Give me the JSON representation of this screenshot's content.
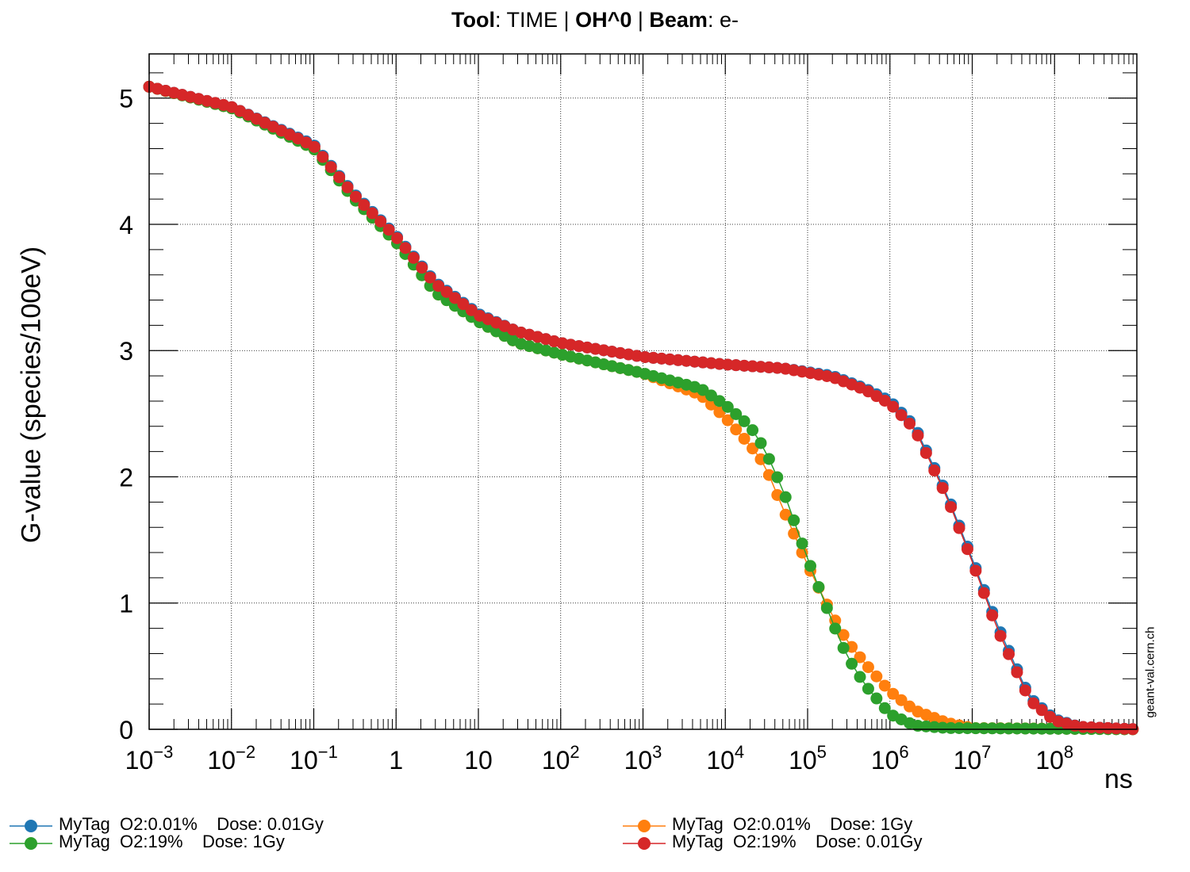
{
  "title": {
    "tool_key": "Tool",
    "tool_val": ": TIME | ",
    "species": "OH^0",
    "sep": " | ",
    "beam_key": "Beam",
    "beam_val": ": e-"
  },
  "watermark": "geant-val.cern.ch",
  "colors": {
    "blue": "#1f77b4",
    "orange": "#ff7f0e",
    "green": "#2ca02c",
    "red": "#d62728"
  },
  "chart_data": {
    "type": "line",
    "x_scale": "log",
    "xlabel": "ns",
    "ylabel": "G-value (species/100eV)",
    "xlim": [
      0.001,
      1000000000
    ],
    "ylim": [
      0,
      5.35
    ],
    "grid": true,
    "legend_position": "bottom",
    "x_ticks": [
      {
        "base": "10",
        "exp": "−3",
        "v": 0.001
      },
      {
        "base": "10",
        "exp": "−2",
        "v": 0.01
      },
      {
        "base": "10",
        "exp": "−1",
        "v": 0.1
      },
      {
        "base": "1",
        "exp": "",
        "v": 1
      },
      {
        "base": "10",
        "exp": "",
        "v": 10
      },
      {
        "base": "10",
        "exp": "2",
        "v": 100
      },
      {
        "base": "10",
        "exp": "3",
        "v": 1000
      },
      {
        "base": "10",
        "exp": "4",
        "v": 10000
      },
      {
        "base": "10",
        "exp": "5",
        "v": 100000
      },
      {
        "base": "10",
        "exp": "6",
        "v": 1000000
      },
      {
        "base": "10",
        "exp": "7",
        "v": 10000000
      },
      {
        "base": "10",
        "exp": "8",
        "v": 100000000
      }
    ],
    "y_ticks": [
      "0",
      "1",
      "2",
      "3",
      "4",
      "5"
    ],
    "series": [
      {
        "name": "MyTag  O2:0.01%    Dose: 0.01Gy",
        "color": "#1f77b4",
        "points": [
          [
            0.001,
            5.09
          ],
          [
            0.001,
            5.09
          ],
          [
            0.01,
            4.93
          ],
          [
            0.1,
            4.63
          ],
          [
            0.3,
            4.25
          ],
          [
            1,
            3.91
          ],
          [
            3,
            3.54
          ],
          [
            10,
            3.29
          ],
          [
            30,
            3.15
          ],
          [
            100,
            3.06
          ],
          [
            1000,
            2.95
          ],
          [
            10000,
            2.89
          ],
          [
            50000,
            2.86
          ],
          [
            200000,
            2.8
          ],
          [
            500000,
            2.7
          ],
          [
            1000000,
            2.6
          ],
          [
            2000000,
            2.4
          ],
          [
            5000000,
            1.85
          ],
          [
            10000000,
            1.35
          ],
          [
            20000000,
            0.83
          ],
          [
            50000000,
            0.25
          ],
          [
            100000000,
            0.08
          ],
          [
            200000000,
            0.02
          ],
          [
            1000000000,
            0.0
          ]
        ]
      },
      {
        "name": "MyTag  O2:0.01%    Dose: 1Gy",
        "color": "#ff7f0e",
        "points": [
          [
            0.001,
            5.09
          ],
          [
            0.01,
            4.92
          ],
          [
            0.1,
            4.6
          ],
          [
            0.3,
            4.21
          ],
          [
            1,
            3.86
          ],
          [
            3,
            3.46
          ],
          [
            10,
            3.23
          ],
          [
            30,
            3.06
          ],
          [
            100,
            2.97
          ],
          [
            1000,
            2.82
          ],
          [
            5000,
            2.65
          ],
          [
            10000,
            2.47
          ],
          [
            20000,
            2.25
          ],
          [
            30000,
            2.1
          ],
          [
            50000,
            1.75
          ],
          [
            100000,
            1.3
          ],
          [
            200000,
            0.9
          ],
          [
            300000,
            0.7
          ],
          [
            500000,
            0.52
          ],
          [
            1000000,
            0.3
          ],
          [
            2000000,
            0.15
          ],
          [
            5000000,
            0.05
          ],
          [
            10000000,
            0.01
          ],
          [
            1000000000,
            0.0
          ]
        ]
      },
      {
        "name": "MyTag  O2:19%    Dose: 1Gy",
        "color": "#2ca02c",
        "points": [
          [
            0.001,
            5.09
          ],
          [
            0.01,
            4.92
          ],
          [
            0.1,
            4.6
          ],
          [
            0.3,
            4.21
          ],
          [
            1,
            3.86
          ],
          [
            3,
            3.46
          ],
          [
            10,
            3.23
          ],
          [
            30,
            3.06
          ],
          [
            100,
            2.97
          ],
          [
            1000,
            2.82
          ],
          [
            5000,
            2.7
          ],
          [
            10000,
            2.57
          ],
          [
            20000,
            2.4
          ],
          [
            30000,
            2.22
          ],
          [
            50000,
            1.9
          ],
          [
            100000,
            1.35
          ],
          [
            200000,
            0.85
          ],
          [
            300000,
            0.58
          ],
          [
            500000,
            0.35
          ],
          [
            1000000,
            0.12
          ],
          [
            2000000,
            0.03
          ],
          [
            5000000,
            0.01
          ],
          [
            1000000000,
            0.0
          ]
        ]
      },
      {
        "name": "MyTag  O2:19%    Dose: 0.01Gy",
        "color": "#d62728",
        "points": [
          [
            0.001,
            5.09
          ],
          [
            0.01,
            4.93
          ],
          [
            0.1,
            4.62
          ],
          [
            0.3,
            4.24
          ],
          [
            1,
            3.9
          ],
          [
            3,
            3.53
          ],
          [
            10,
            3.28
          ],
          [
            30,
            3.15
          ],
          [
            100,
            3.06
          ],
          [
            1000,
            2.95
          ],
          [
            10000,
            2.89
          ],
          [
            50000,
            2.86
          ],
          [
            200000,
            2.79
          ],
          [
            500000,
            2.69
          ],
          [
            1000000,
            2.58
          ],
          [
            2000000,
            2.38
          ],
          [
            5000000,
            1.83
          ],
          [
            10000000,
            1.33
          ],
          [
            20000000,
            0.8
          ],
          [
            50000000,
            0.23
          ],
          [
            100000000,
            0.07
          ],
          [
            200000000,
            0.02
          ],
          [
            1000000000,
            0.0
          ]
        ]
      }
    ]
  }
}
